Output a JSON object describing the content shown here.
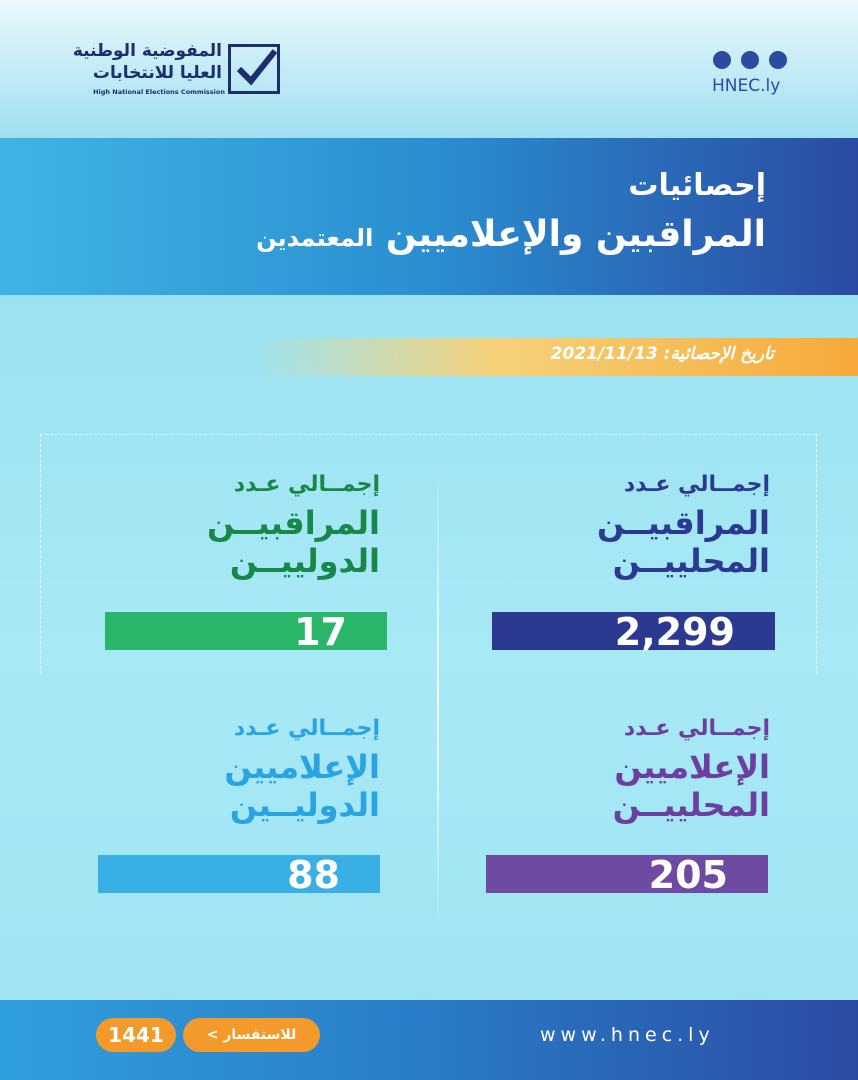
{
  "logo": {
    "line1": "المفوضية الوطنية",
    "line2": "العليا للانتخابات",
    "english": "High National Elections Commission"
  },
  "social": {
    "site": "HNEC.ly"
  },
  "header": {
    "title": "إحصائيات",
    "subtitle": "المراقبين والإعلاميين",
    "subtitle_small": "المعتمدين"
  },
  "date": {
    "label": "تاريخ الإحصائية:",
    "value": "2021/11/13"
  },
  "cards": [
    {
      "lines": [
        "إجمــالي عـدد",
        "المراقبيــن",
        "المحلييــن"
      ],
      "value": "2,299"
    },
    {
      "lines": [
        "إجمــالي عـدد",
        "المراقبيــن",
        "الدولييــن"
      ],
      "value": "17"
    },
    {
      "lines": [
        "إجمــالي عـدد",
        "الإعلاميين",
        "المحلييــن"
      ],
      "value": "205"
    },
    {
      "lines": [
        "إجمــالي عـدد",
        "الإعلاميين",
        "الدوليــين"
      ],
      "value": "88"
    }
  ],
  "footer": {
    "url": "www.hnec.ly",
    "inquiry": "للاستفسار",
    "phone": "1441"
  }
}
